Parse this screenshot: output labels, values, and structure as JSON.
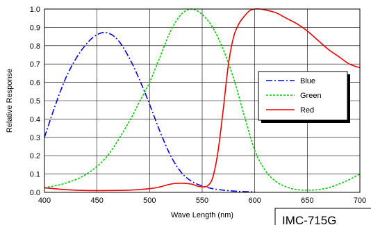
{
  "chart_data": {
    "type": "line",
    "title": "",
    "xlabel": "Wave Length (nm)",
    "ylabel": "Relative Response",
    "xlim": [
      400,
      700
    ],
    "ylim": [
      0,
      1.0
    ],
    "x_ticks": [
      "400",
      "450",
      "500",
      "550",
      "600",
      "650",
      "700"
    ],
    "y_ticks": [
      "0.0",
      "0.1",
      "0.2",
      "0.3",
      "0.4",
      "0.5",
      "0.6",
      "0.7",
      "0.8",
      "0.9",
      "1.0"
    ],
    "grid": true,
    "legend_position": "right",
    "series": [
      {
        "name": "Blue",
        "color": "#0000ee",
        "dash": "dash-dot",
        "x": [
          400,
          410,
          420,
          430,
          440,
          450,
          460,
          470,
          480,
          490,
          500,
          510,
          520,
          530,
          540,
          550,
          560,
          570,
          580,
          590,
          600
        ],
        "y": [
          0.3,
          0.47,
          0.62,
          0.73,
          0.81,
          0.86,
          0.87,
          0.83,
          0.74,
          0.62,
          0.48,
          0.33,
          0.2,
          0.11,
          0.06,
          0.035,
          0.02,
          0.012,
          0.007,
          0.004,
          0.003
        ]
      },
      {
        "name": "Green",
        "color": "#00cc00",
        "dash": "dotted",
        "x": [
          400,
          420,
          440,
          460,
          480,
          490,
          500,
          510,
          520,
          530,
          540,
          550,
          560,
          570,
          580,
          590,
          600,
          610,
          620,
          630,
          640,
          650,
          660,
          670,
          680,
          690,
          700
        ],
        "y": [
          0.025,
          0.05,
          0.1,
          0.2,
          0.38,
          0.49,
          0.6,
          0.74,
          0.88,
          0.97,
          1.0,
          0.97,
          0.9,
          0.78,
          0.62,
          0.42,
          0.23,
          0.12,
          0.06,
          0.03,
          0.015,
          0.012,
          0.015,
          0.025,
          0.045,
          0.07,
          0.1
        ]
      },
      {
        "name": "Red",
        "color": "#ee0000",
        "dash": "solid",
        "x": [
          400,
          420,
          440,
          460,
          480,
          500,
          510,
          520,
          530,
          540,
          545,
          550,
          555,
          560,
          565,
          570,
          575,
          580,
          585,
          590,
          595,
          600,
          605,
          610,
          620,
          630,
          640,
          650,
          660,
          670,
          680,
          690,
          700
        ],
        "y": [
          0.025,
          0.015,
          0.01,
          0.01,
          0.012,
          0.02,
          0.03,
          0.045,
          0.05,
          0.045,
          0.035,
          0.03,
          0.035,
          0.08,
          0.22,
          0.45,
          0.7,
          0.85,
          0.92,
          0.96,
          0.99,
          1.0,
          1.0,
          0.995,
          0.98,
          0.95,
          0.92,
          0.88,
          0.83,
          0.78,
          0.74,
          0.7,
          0.68
        ]
      }
    ],
    "annotation": "IMC-715G"
  }
}
